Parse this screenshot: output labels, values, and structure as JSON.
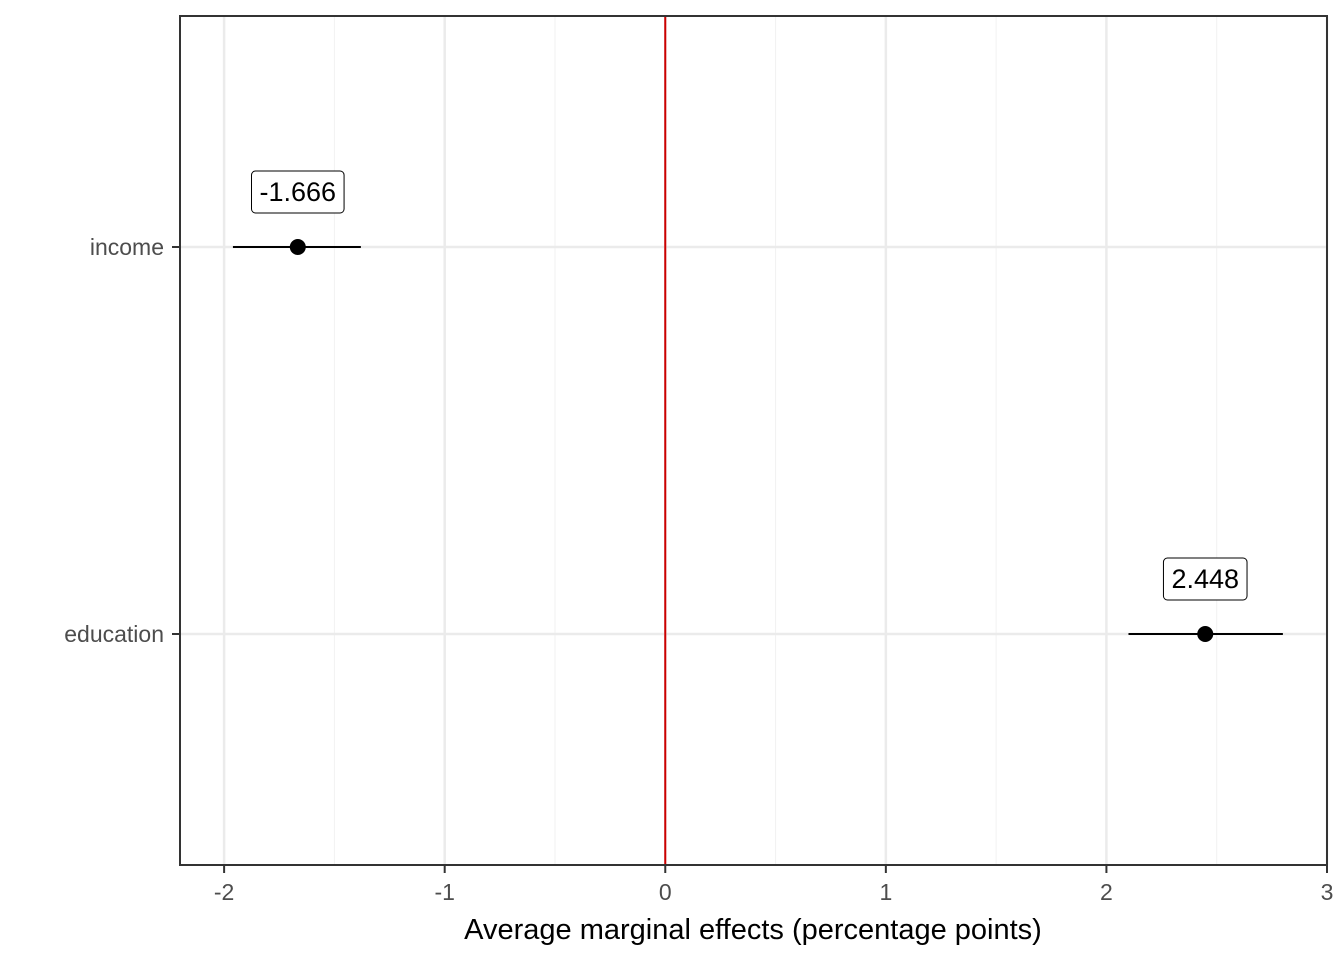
{
  "chart_data": {
    "type": "scatter",
    "subtype": "coefficient-plot",
    "title": "",
    "xlabel": "Average marginal effects (percentage points)",
    "ylabel": "",
    "xlim": [
      -2.2,
      3.0
    ],
    "x_ticks": [
      -2,
      -1,
      0,
      1,
      2,
      3
    ],
    "x_tick_labels": [
      "-2",
      "-1",
      "0",
      "1",
      "2",
      "3"
    ],
    "categories": [
      "income",
      "education"
    ],
    "points": [
      {
        "term": "income",
        "estimate": -1.666,
        "conf_low": -1.96,
        "conf_high": -1.38,
        "label": "-1.666"
      },
      {
        "term": "education",
        "estimate": 2.448,
        "conf_low": 2.1,
        "conf_high": 2.8,
        "label": "2.448"
      }
    ],
    "reference_line": {
      "x": 0,
      "color": "#cc0000"
    },
    "grid": true,
    "legend": "none",
    "colors": {
      "point": "#000000",
      "grid_major": "#ebebeb",
      "grid_minor": "#f2f2f2",
      "panel_border": "#333333"
    }
  }
}
